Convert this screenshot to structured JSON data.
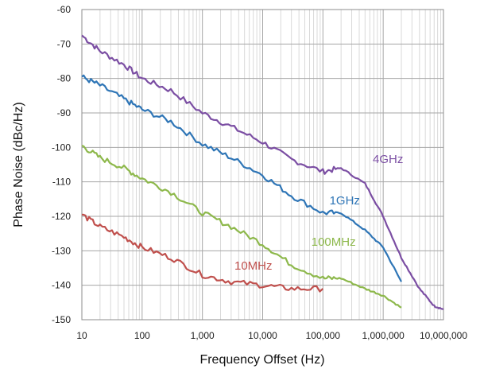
{
  "chart_data": {
    "type": "line",
    "title": "",
    "xlabel": "Frequency Offset (Hz)",
    "ylabel": "Phase Noise (dBc/Hz)",
    "x_scale": "log",
    "xlim": [
      10,
      10000000
    ],
    "ylim": [
      -150,
      -60
    ],
    "grid": true,
    "x_ticks": [
      "10",
      "100",
      "1,000",
      "10,000",
      "100,000",
      "1,000,000",
      "10,000,000"
    ],
    "y_ticks": [
      "-60",
      "-70",
      "-80",
      "-90",
      "-100",
      "-110",
      "-120",
      "-130",
      "-140",
      "-150"
    ],
    "series": [
      {
        "name": "4GHz",
        "color": "#7b4ea3",
        "points": [
          [
            10,
            -67.5
          ],
          [
            20,
            -72
          ],
          [
            50,
            -76
          ],
          [
            100,
            -80
          ],
          [
            300,
            -83.5
          ],
          [
            1000,
            -90
          ],
          [
            3000,
            -94
          ],
          [
            10000,
            -98.5
          ],
          [
            30000,
            -103.5
          ],
          [
            100000,
            -107
          ],
          [
            200000,
            -106
          ],
          [
            500000,
            -110.5
          ],
          [
            1000000,
            -120
          ],
          [
            2000000,
            -132
          ],
          [
            4000000,
            -141
          ],
          [
            7000000,
            -146
          ],
          [
            10000000,
            -147
          ]
        ]
      },
      {
        "name": "1GHz",
        "color": "#2e75b6",
        "points": [
          [
            10,
            -79.5
          ],
          [
            20,
            -82
          ],
          [
            50,
            -86
          ],
          [
            100,
            -89
          ],
          [
            300,
            -92.5
          ],
          [
            1000,
            -99
          ],
          [
            3000,
            -103
          ],
          [
            10000,
            -108
          ],
          [
            30000,
            -114
          ],
          [
            100000,
            -119
          ],
          [
            200000,
            -119
          ],
          [
            500000,
            -124
          ],
          [
            1000000,
            -129
          ],
          [
            2000000,
            -139
          ]
        ]
      },
      {
        "name": "100MHz",
        "color": "#8db84b",
        "points": [
          [
            10,
            -99.5
          ],
          [
            20,
            -103
          ],
          [
            50,
            -106
          ],
          [
            100,
            -109
          ],
          [
            300,
            -113
          ],
          [
            1000,
            -119
          ],
          [
            3000,
            -123
          ],
          [
            10000,
            -128
          ],
          [
            30000,
            -134
          ],
          [
            100000,
            -138
          ],
          [
            200000,
            -138
          ],
          [
            500000,
            -141
          ],
          [
            1000000,
            -143
          ],
          [
            2000000,
            -146.5
          ]
        ]
      },
      {
        "name": "10MHz",
        "color": "#c0504d",
        "points": [
          [
            10,
            -119.5
          ],
          [
            20,
            -123
          ],
          [
            50,
            -126
          ],
          [
            100,
            -129
          ],
          [
            300,
            -132
          ],
          [
            1000,
            -137
          ],
          [
            3000,
            -139
          ],
          [
            10000,
            -140
          ],
          [
            30000,
            -141
          ],
          [
            100000,
            -141
          ]
        ]
      }
    ],
    "labels": [
      {
        "text": "4GHz",
        "series": "4GHz"
      },
      {
        "text": "1GHz",
        "series": "1GHz"
      },
      {
        "text": "100MHz",
        "series": "100MHz"
      },
      {
        "text": "10MHz",
        "series": "10MHz"
      }
    ]
  }
}
